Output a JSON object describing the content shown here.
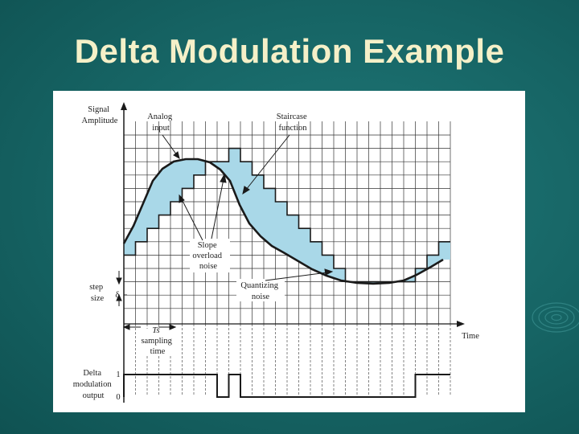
{
  "slide": {
    "title": "Delta Modulation Example"
  },
  "figure": {
    "labels": {
      "signal_amplitude_1": "Signal",
      "signal_amplitude_2": "Amplitude",
      "analog_input_1": "Analog",
      "analog_input_2": "input",
      "staircase_1": "Staircase",
      "staircase_2": "function",
      "slope_1": "Slope",
      "slope_2": "overload",
      "slope_3": "noise",
      "quantizing_1": "Quantizing",
      "quantizing_2": "noise",
      "step_1": "step",
      "step_2": "size",
      "delta_symbol": "δ",
      "time": "Time",
      "ts_symbol": "Ts",
      "sampling_1": "sampling",
      "sampling_2": "time",
      "delta_mod_1": "Delta",
      "delta_mod_2": "modulation",
      "delta_mod_3": "output",
      "level_one": "1",
      "level_zero": "0"
    },
    "colors": {
      "noise_fill": "#a9d8e8",
      "line": "#1a1a1a",
      "grid": "#333333"
    }
  }
}
